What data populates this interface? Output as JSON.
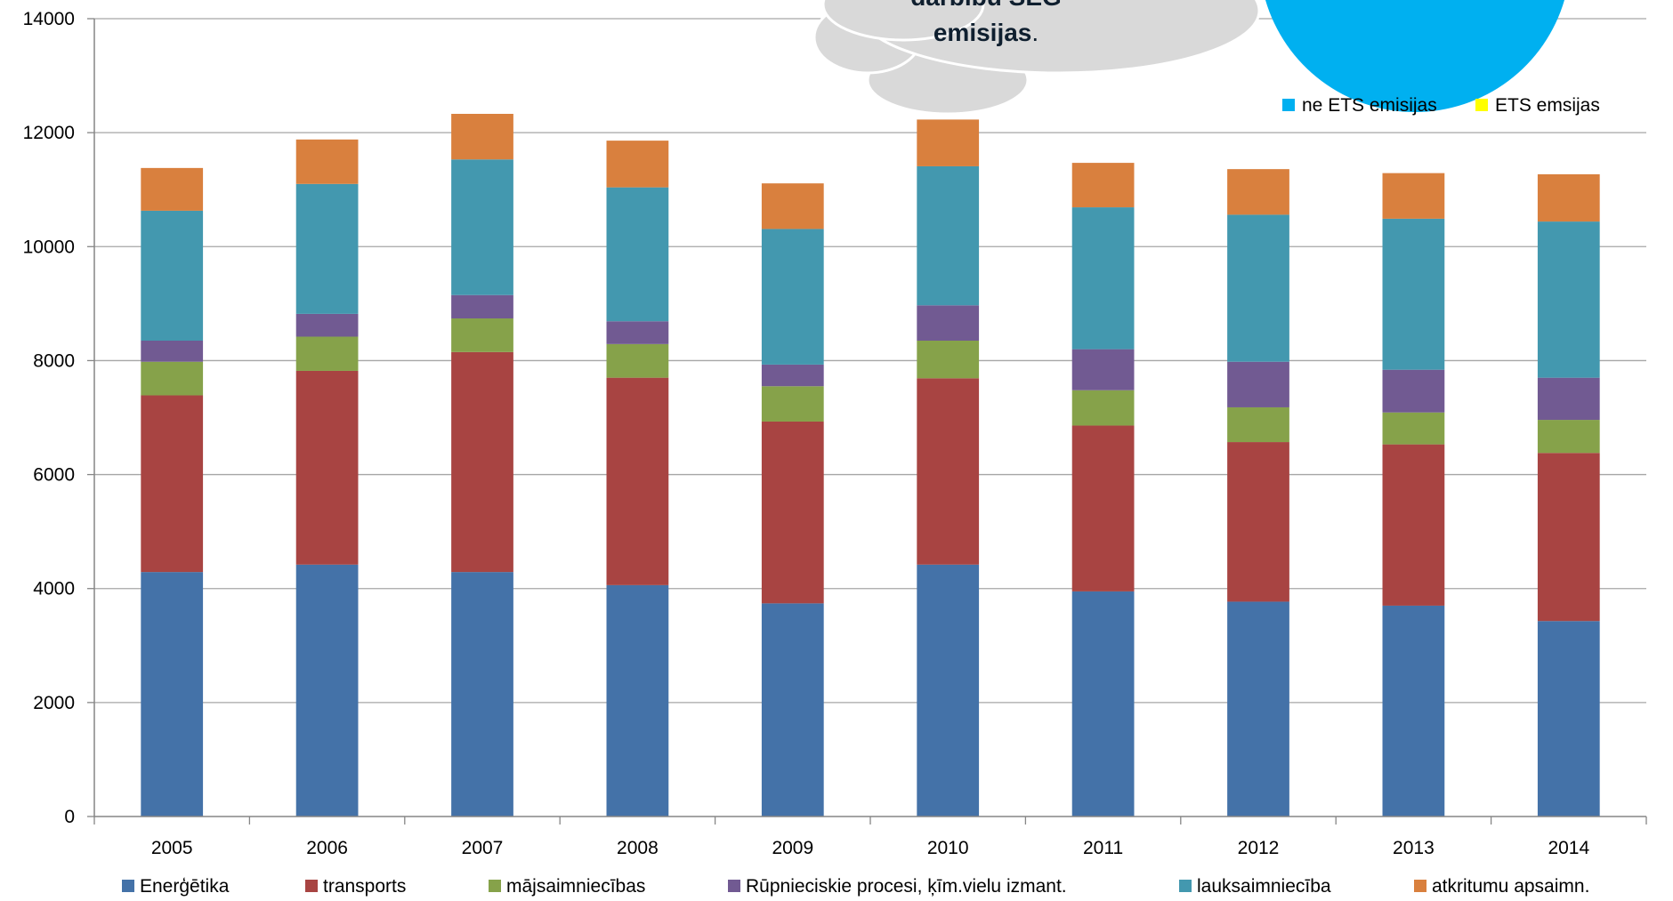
{
  "colors": {
    "energetika": "#4472A8",
    "transports": "#A84442",
    "majsaimniecibas": "#86A24A",
    "rupnieciskie": "#715A92",
    "lauksaimnieciba": "#4398AF",
    "atkritumi": "#D9803E",
    "ne_ets": "#00B0F0",
    "ets": "#FFFF00",
    "gridline": "#A6A6A6",
    "cloud": "#D9D9D9",
    "circle": "#00B0F0"
  },
  "callout": {
    "line1": "darbību SEG",
    "line2": "emisijas",
    "line2_suffix": "."
  },
  "top_legend": {
    "items": [
      {
        "label": "ne ETS emisijas",
        "color_key": "ne_ets"
      },
      {
        "label": "ETS emsijas",
        "color_key": "ets"
      }
    ]
  },
  "chart_data": {
    "type": "bar",
    "stacked": true,
    "categories": [
      "2005",
      "2006",
      "2007",
      "2008",
      "2009",
      "2010",
      "2011",
      "2012",
      "2013",
      "2014"
    ],
    "ylim": [
      0,
      14000
    ],
    "yticks": [
      "0",
      "2000",
      "4000",
      "6000",
      "8000",
      "10000",
      "12000",
      "14000"
    ],
    "grid": true,
    "legend_position": "bottom",
    "series": [
      {
        "name": "Enerģētika",
        "color_key": "energetika",
        "values": [
          4290,
          4420,
          4290,
          4060,
          3740,
          4420,
          3950,
          3770,
          3700,
          3430
        ]
      },
      {
        "name": "transports",
        "color_key": "transports",
        "values": [
          3100,
          3400,
          3860,
          3640,
          3190,
          3270,
          2910,
          2800,
          2830,
          2950
        ]
      },
      {
        "name": "mājsaimniecības",
        "color_key": "majsaimniecibas",
        "values": [
          590,
          600,
          590,
          590,
          620,
          660,
          620,
          610,
          560,
          580
        ]
      },
      {
        "name": "Rūpnieciskie procesi, ķīm.vielu izmant.",
        "color_key": "rupnieciskie",
        "values": [
          370,
          400,
          410,
          400,
          380,
          620,
          720,
          800,
          750,
          740
        ]
      },
      {
        "name": "lauksaimniecība",
        "color_key": "lauksaimnieciba",
        "values": [
          2280,
          2280,
          2380,
          2350,
          2380,
          2440,
          2490,
          2580,
          2650,
          2740
        ]
      },
      {
        "name": "atkritumu apsaimn.",
        "color_key": "atkritumi",
        "values": [
          750,
          780,
          800,
          820,
          800,
          820,
          780,
          800,
          800,
          830
        ]
      }
    ]
  }
}
